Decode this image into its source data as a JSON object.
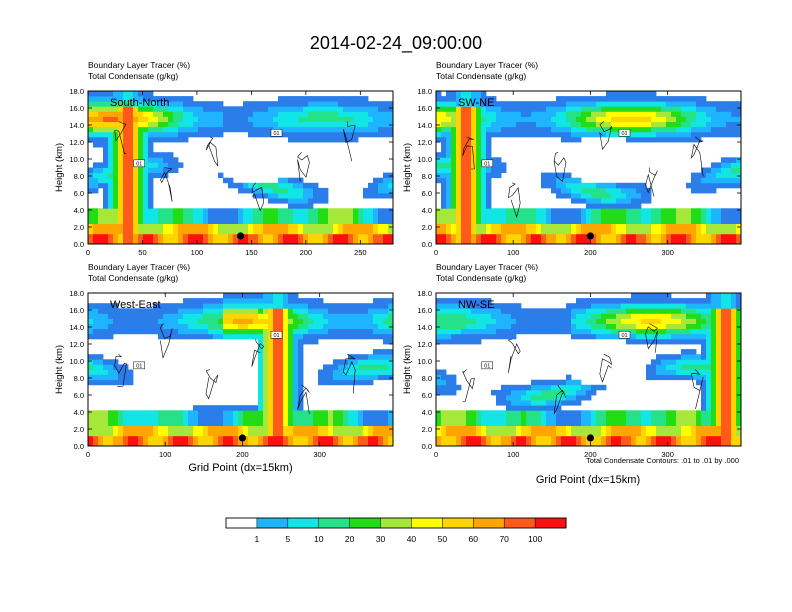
{
  "title": "2014-02-24_09:00:00",
  "chart_data": {
    "type": "heatmap",
    "shading_variable": "Boundary Layer Tracer",
    "shading_units": "(%)",
    "contour_variable": "Total Condensate",
    "contour_units": "(g/kg)",
    "contour_note": "Total Condensate Contours: .01 to .01 by .000",
    "contour_label": "01",
    "ylabel": "Height (km)",
    "xlabel": "Grid Point (dx=15km)",
    "yticks": [
      "0.0",
      "2.0",
      "4.0",
      "6.0",
      "8.0",
      "10.0",
      "12.0",
      "14.0",
      "16.0",
      "18.0"
    ],
    "ylim": [
      0,
      18
    ],
    "panels": [
      {
        "name": "South-North",
        "xlim": [
          0,
          280
        ],
        "xticks": [
          0,
          50,
          100,
          150,
          200,
          250
        ]
      },
      {
        "name": "SW-NE",
        "xlim": [
          0,
          395
        ],
        "xticks": [
          0,
          100,
          200,
          300
        ]
      },
      {
        "name": "West-East",
        "xlim": [
          0,
          395
        ],
        "xticks": [
          0,
          100,
          200,
          300
        ]
      },
      {
        "name": "NW-SE",
        "xlim": [
          0,
          395
        ],
        "xticks": [
          0,
          100,
          200,
          300
        ]
      }
    ],
    "colorbar": {
      "labels": [
        "1",
        "5",
        "10",
        "20",
        "30",
        "40",
        "50",
        "60",
        "70",
        "100"
      ],
      "colors": [
        "#ffffff",
        "#2b7de9",
        "#1fb4ff",
        "#11e5e5",
        "#23e28a",
        "#22dd15",
        "#a6e83a",
        "#ffff00",
        "#ffd400",
        "#ffa500",
        "#ff5a1a",
        "#ff1010"
      ]
    }
  }
}
